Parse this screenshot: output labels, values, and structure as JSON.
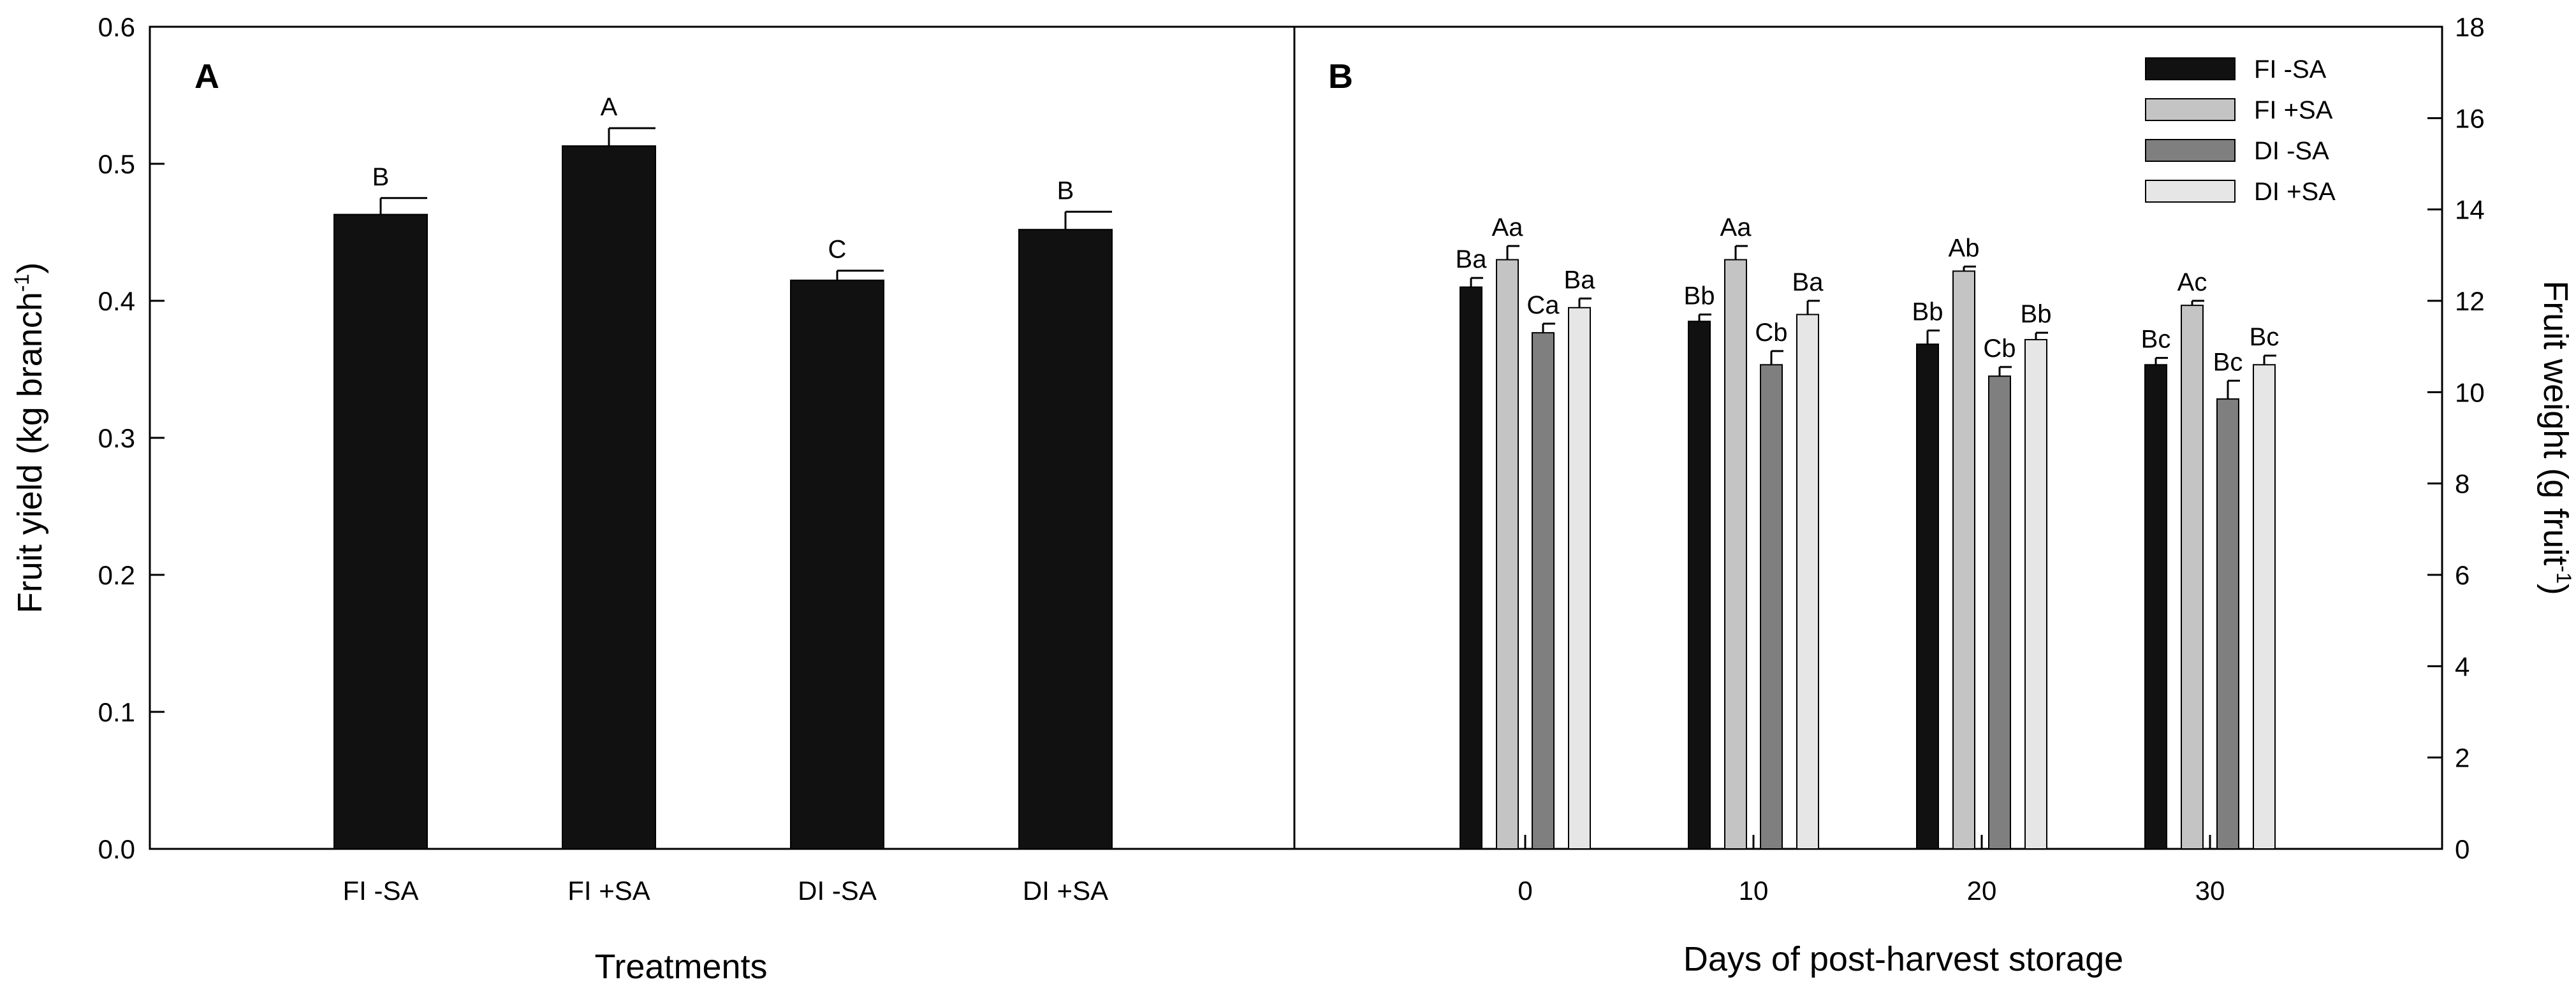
{
  "chart_data": [
    {
      "type": "bar",
      "panel": "A",
      "panel_label": "A",
      "title": "",
      "xlabel": "Treatments",
      "ylabel": "Fruit yield (kg branch",
      "ylabel_sup": "-1",
      "ylabel_close": ")",
      "ylim": [
        0,
        0.6
      ],
      "yticks": [
        "0.0",
        "0.1",
        "0.2",
        "0.3",
        "0.4",
        "0.5",
        "0.6"
      ],
      "categories": [
        "FI -SA",
        "FI +SA",
        "DI -SA",
        "DI +SA"
      ],
      "values": [
        0.463,
        0.513,
        0.415,
        0.452
      ],
      "errors": [
        0.012,
        0.013,
        0.007,
        0.013
      ],
      "significance": [
        "B",
        "A",
        "C",
        "B"
      ],
      "bar_color": "#111111"
    },
    {
      "type": "bar",
      "panel": "B",
      "panel_label": "B",
      "title": "",
      "xlabel": "Days of post-harvest storage",
      "ylabel": "Fruit weight (g fruit",
      "ylabel_sup": "-1",
      "ylabel_close": ")",
      "ylim": [
        0,
        18
      ],
      "yticks": [
        "0",
        "2",
        "4",
        "6",
        "8",
        "10",
        "12",
        "14",
        "16",
        "18"
      ],
      "categories": [
        "0",
        "10",
        "20",
        "30"
      ],
      "series": [
        {
          "name": "FI -SA",
          "color": "#111111",
          "values": [
            12.3,
            11.55,
            11.05,
            10.6
          ],
          "errors": [
            0.2,
            0.15,
            0.3,
            0.15
          ],
          "labels": [
            "Ba",
            "Bb",
            "Bb",
            "Bc"
          ]
        },
        {
          "name": "FI +SA",
          "color": "#c4c4c4",
          "values": [
            12.9,
            12.9,
            12.65,
            11.9
          ],
          "errors": [
            0.3,
            0.3,
            0.1,
            0.1
          ],
          "labels": [
            "Aa",
            "Aa",
            "Ab",
            "Ac"
          ]
        },
        {
          "name": "DI -SA",
          "color": "#7f7f7f",
          "values": [
            11.3,
            10.6,
            10.35,
            9.85
          ],
          "errors": [
            0.2,
            0.3,
            0.2,
            0.4
          ],
          "labels": [
            "Ca",
            "Cb",
            "Cb",
            "Bc"
          ]
        },
        {
          "name": "DI +SA",
          "color": "#e6e6e6",
          "values": [
            11.85,
            11.7,
            11.15,
            10.6
          ],
          "errors": [
            0.2,
            0.3,
            0.15,
            0.2
          ],
          "labels": [
            "Ba",
            "Ba",
            "Bb",
            "Bc"
          ]
        }
      ],
      "legend_position": "top-right"
    }
  ]
}
